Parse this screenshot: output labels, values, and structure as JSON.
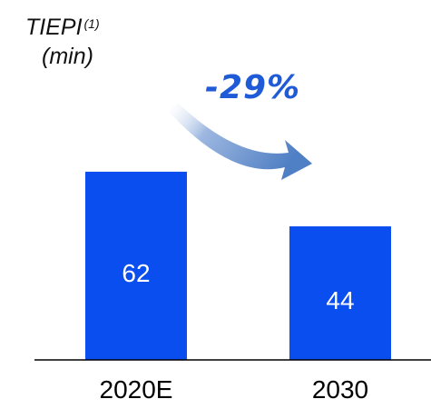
{
  "chart_data": {
    "type": "bar",
    "ylabel": "TIEPI",
    "ylabel_note": "(1)",
    "yunit": "(min)",
    "categories": [
      "2020E",
      "2030"
    ],
    "values": [
      62,
      44
    ],
    "annotation": "-29%",
    "bar_color": "#0b4ef0",
    "label_color": "#ffffff",
    "arrow_color": "#5b86c8"
  }
}
